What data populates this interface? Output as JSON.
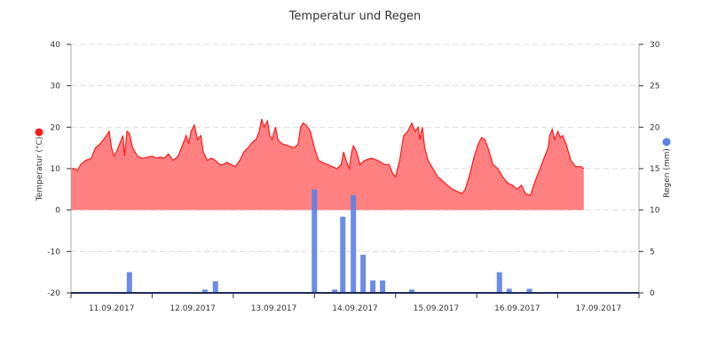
{
  "chart_data": {
    "type": "area+bar",
    "title": "Temperatur und Regen",
    "date_labels": [
      "11.09.2017",
      "12.09.2017",
      "13.09.2017",
      "14.09.2017",
      "15.09.2017",
      "16.09.2017",
      "17.09.2017"
    ],
    "x_range_days": [
      10.0,
      17.0
    ],
    "y_left": {
      "label": "Temperatur (°C)",
      "range": [
        -20,
        40
      ],
      "ticks": [
        40,
        30,
        20,
        10,
        0,
        -10,
        -20
      ],
      "tick_labels": [
        "40",
        "30",
        "20",
        "10",
        "0",
        "-10",
        "-20"
      ]
    },
    "y_right": {
      "label": "Regen (mm)",
      "range": [
        0,
        30
      ],
      "ticks": [
        30,
        25,
        20,
        15,
        10,
        5,
        0
      ],
      "tick_labels": [
        "30",
        "25",
        "20",
        "15",
        "10",
        "5",
        "0"
      ]
    },
    "grid": "horizontal-dashed",
    "series": [
      {
        "name": "Temperatur",
        "type": "area",
        "axis": "left",
        "color": "#ff1a1a",
        "fill": "#ff8080",
        "points": [
          [
            10.0,
            10
          ],
          [
            10.04,
            10
          ],
          [
            10.08,
            9.5
          ],
          [
            10.12,
            11
          ],
          [
            10.18,
            12
          ],
          [
            10.25,
            12.5
          ],
          [
            10.3,
            15
          ],
          [
            10.36,
            16
          ],
          [
            10.42,
            17.5
          ],
          [
            10.47,
            19
          ],
          [
            10.5,
            15
          ],
          [
            10.53,
            13
          ],
          [
            10.56,
            14
          ],
          [
            10.6,
            16
          ],
          [
            10.64,
            18
          ],
          [
            10.66,
            13
          ],
          [
            10.69,
            19
          ],
          [
            10.72,
            18.5
          ],
          [
            10.76,
            15
          ],
          [
            10.82,
            13
          ],
          [
            10.88,
            12.5
          ],
          [
            10.95,
            12.8
          ],
          [
            11.0,
            13
          ],
          [
            11.05,
            12.5
          ],
          [
            11.1,
            12.8
          ],
          [
            11.15,
            12.5
          ],
          [
            11.2,
            13.5
          ],
          [
            11.26,
            12
          ],
          [
            11.32,
            13
          ],
          [
            11.38,
            16
          ],
          [
            11.42,
            18
          ],
          [
            11.45,
            16
          ],
          [
            11.48,
            19
          ],
          [
            11.52,
            20.5
          ],
          [
            11.56,
            17
          ],
          [
            11.6,
            18
          ],
          [
            11.63,
            14
          ],
          [
            11.68,
            12
          ],
          [
            11.73,
            12.5
          ],
          [
            11.78,
            12
          ],
          [
            11.83,
            11
          ],
          [
            11.88,
            11
          ],
          [
            11.92,
            11.5
          ],
          [
            11.97,
            11
          ],
          [
            12.02,
            10.5
          ],
          [
            12.08,
            12
          ],
          [
            12.13,
            14
          ],
          [
            12.18,
            15
          ],
          [
            12.24,
            16.5
          ],
          [
            12.28,
            17
          ],
          [
            12.32,
            19
          ],
          [
            12.35,
            22
          ],
          [
            12.38,
            20
          ],
          [
            12.42,
            21.5
          ],
          [
            12.45,
            18
          ],
          [
            12.48,
            17
          ],
          [
            12.52,
            20
          ],
          [
            12.55,
            17
          ],
          [
            12.6,
            16
          ],
          [
            12.68,
            15.5
          ],
          [
            12.75,
            15
          ],
          [
            12.8,
            16
          ],
          [
            12.83,
            20
          ],
          [
            12.86,
            21
          ],
          [
            12.9,
            20.5
          ],
          [
            12.95,
            19
          ],
          [
            13.0,
            15
          ],
          [
            13.05,
            12
          ],
          [
            13.1,
            11.5
          ],
          [
            13.16,
            11
          ],
          [
            13.22,
            10.5
          ],
          [
            13.28,
            10
          ],
          [
            13.33,
            11
          ],
          [
            13.36,
            14
          ],
          [
            13.39,
            12
          ],
          [
            13.43,
            10
          ],
          [
            13.46,
            14
          ],
          [
            13.48,
            15.5
          ],
          [
            13.52,
            14
          ],
          [
            13.56,
            11
          ],
          [
            13.62,
            12
          ],
          [
            13.7,
            12.5
          ],
          [
            13.78,
            12
          ],
          [
            13.86,
            11
          ],
          [
            13.92,
            11
          ],
          [
            13.96,
            9
          ],
          [
            14.0,
            8
          ],
          [
            14.05,
            12
          ],
          [
            14.1,
            18
          ],
          [
            14.15,
            19
          ],
          [
            14.2,
            21
          ],
          [
            14.24,
            19
          ],
          [
            14.28,
            20
          ],
          [
            14.3,
            17
          ],
          [
            14.33,
            20
          ],
          [
            14.36,
            15
          ],
          [
            14.4,
            12
          ],
          [
            14.46,
            10
          ],
          [
            14.52,
            8
          ],
          [
            14.58,
            7
          ],
          [
            14.64,
            6
          ],
          [
            14.7,
            5
          ],
          [
            14.76,
            4.5
          ],
          [
            14.82,
            4
          ],
          [
            14.86,
            5
          ],
          [
            14.92,
            9
          ],
          [
            14.97,
            13
          ],
          [
            15.02,
            16
          ],
          [
            15.06,
            17.5
          ],
          [
            15.1,
            17
          ],
          [
            15.14,
            15
          ],
          [
            15.2,
            11
          ],
          [
            15.26,
            10
          ],
          [
            15.32,
            8
          ],
          [
            15.38,
            6.5
          ],
          [
            15.44,
            6
          ],
          [
            15.5,
            5
          ],
          [
            15.55,
            6
          ],
          [
            15.6,
            4
          ],
          [
            15.66,
            3.5
          ],
          [
            15.72,
            7
          ],
          [
            15.78,
            10
          ],
          [
            15.84,
            13
          ],
          [
            15.88,
            15
          ],
          [
            15.9,
            18
          ],
          [
            15.93,
            19.5
          ],
          [
            15.96,
            17
          ],
          [
            16.0,
            19
          ],
          [
            16.03,
            17.5
          ],
          [
            16.06,
            18
          ],
          [
            16.1,
            16
          ],
          [
            16.16,
            12
          ],
          [
            16.22,
            10.5
          ],
          [
            16.28,
            10.5
          ],
          [
            16.32,
            10
          ]
        ]
      },
      {
        "name": "Regen",
        "type": "bar",
        "axis": "right",
        "color": "#5b7fe6",
        "bars": [
          [
            10.72,
            2.5
          ],
          [
            11.65,
            0.4
          ],
          [
            11.78,
            1.4
          ],
          [
            13.0,
            12.5
          ],
          [
            13.25,
            0.4
          ],
          [
            13.35,
            9.2
          ],
          [
            13.48,
            11.8
          ],
          [
            13.6,
            4.6
          ],
          [
            13.72,
            1.5
          ],
          [
            13.84,
            1.5
          ],
          [
            14.2,
            0.4
          ],
          [
            15.28,
            2.5
          ],
          [
            15.4,
            0.5
          ],
          [
            15.65,
            0.5
          ]
        ]
      }
    ],
    "legend": "markers beside axis titles"
  }
}
